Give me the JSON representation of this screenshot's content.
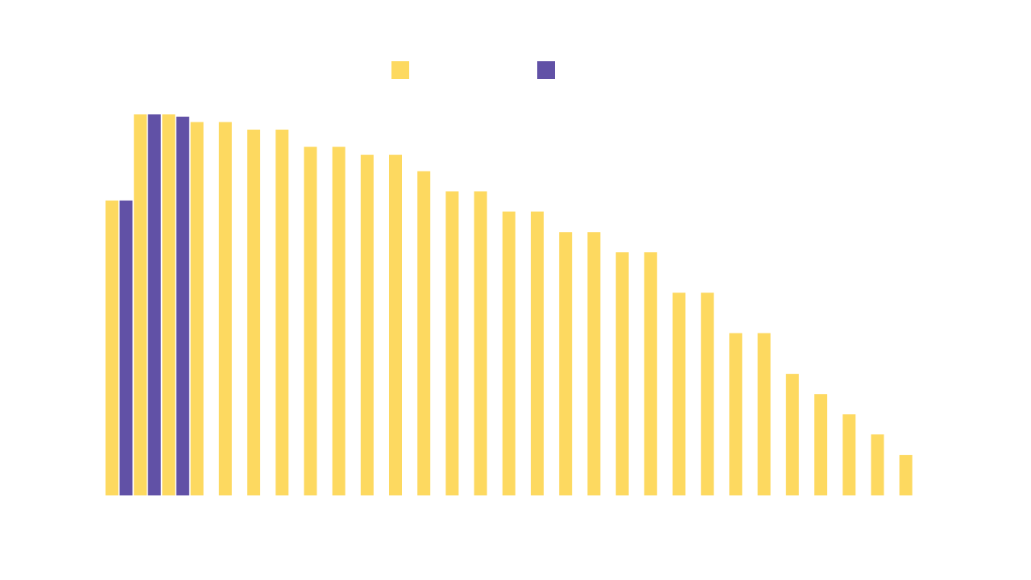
{
  "colors": {
    "series_a": "#FDD960",
    "series_b": "#6151A6",
    "background": "#FFFFFF"
  },
  "chart_data": {
    "type": "bar",
    "title": "",
    "xlabel": "",
    "ylabel": "",
    "categories": [
      "",
      "",
      "",
      "",
      "",
      "",
      "",
      "",
      "",
      "",
      "",
      "",
      "",
      "",
      "",
      "",
      "",
      "",
      "",
      "",
      "",
      "",
      "",
      "",
      "",
      "",
      "",
      "",
      ""
    ],
    "ylim": [
      0,
      100
    ],
    "grid": false,
    "legend_position": "top-center",
    "series": [
      {
        "values": [
          77.4,
          100,
          100,
          98,
          98,
          96,
          96,
          91.5,
          91.5,
          89.4,
          89.4,
          85.1,
          79.8,
          79.8,
          74.5,
          74.5,
          69.1,
          69.1,
          63.8,
          63.8,
          53.2,
          53.2,
          42.6,
          42.6,
          31.9,
          26.6,
          21.3,
          16,
          10.6
        ]
      },
      {
        "values": [
          77.4,
          100,
          99.4,
          null,
          null,
          null,
          null,
          null,
          null,
          null,
          null,
          null,
          null,
          null,
          null,
          null,
          null,
          null,
          null,
          null,
          null,
          null,
          null,
          null,
          null,
          null,
          null,
          null,
          null
        ]
      }
    ]
  }
}
